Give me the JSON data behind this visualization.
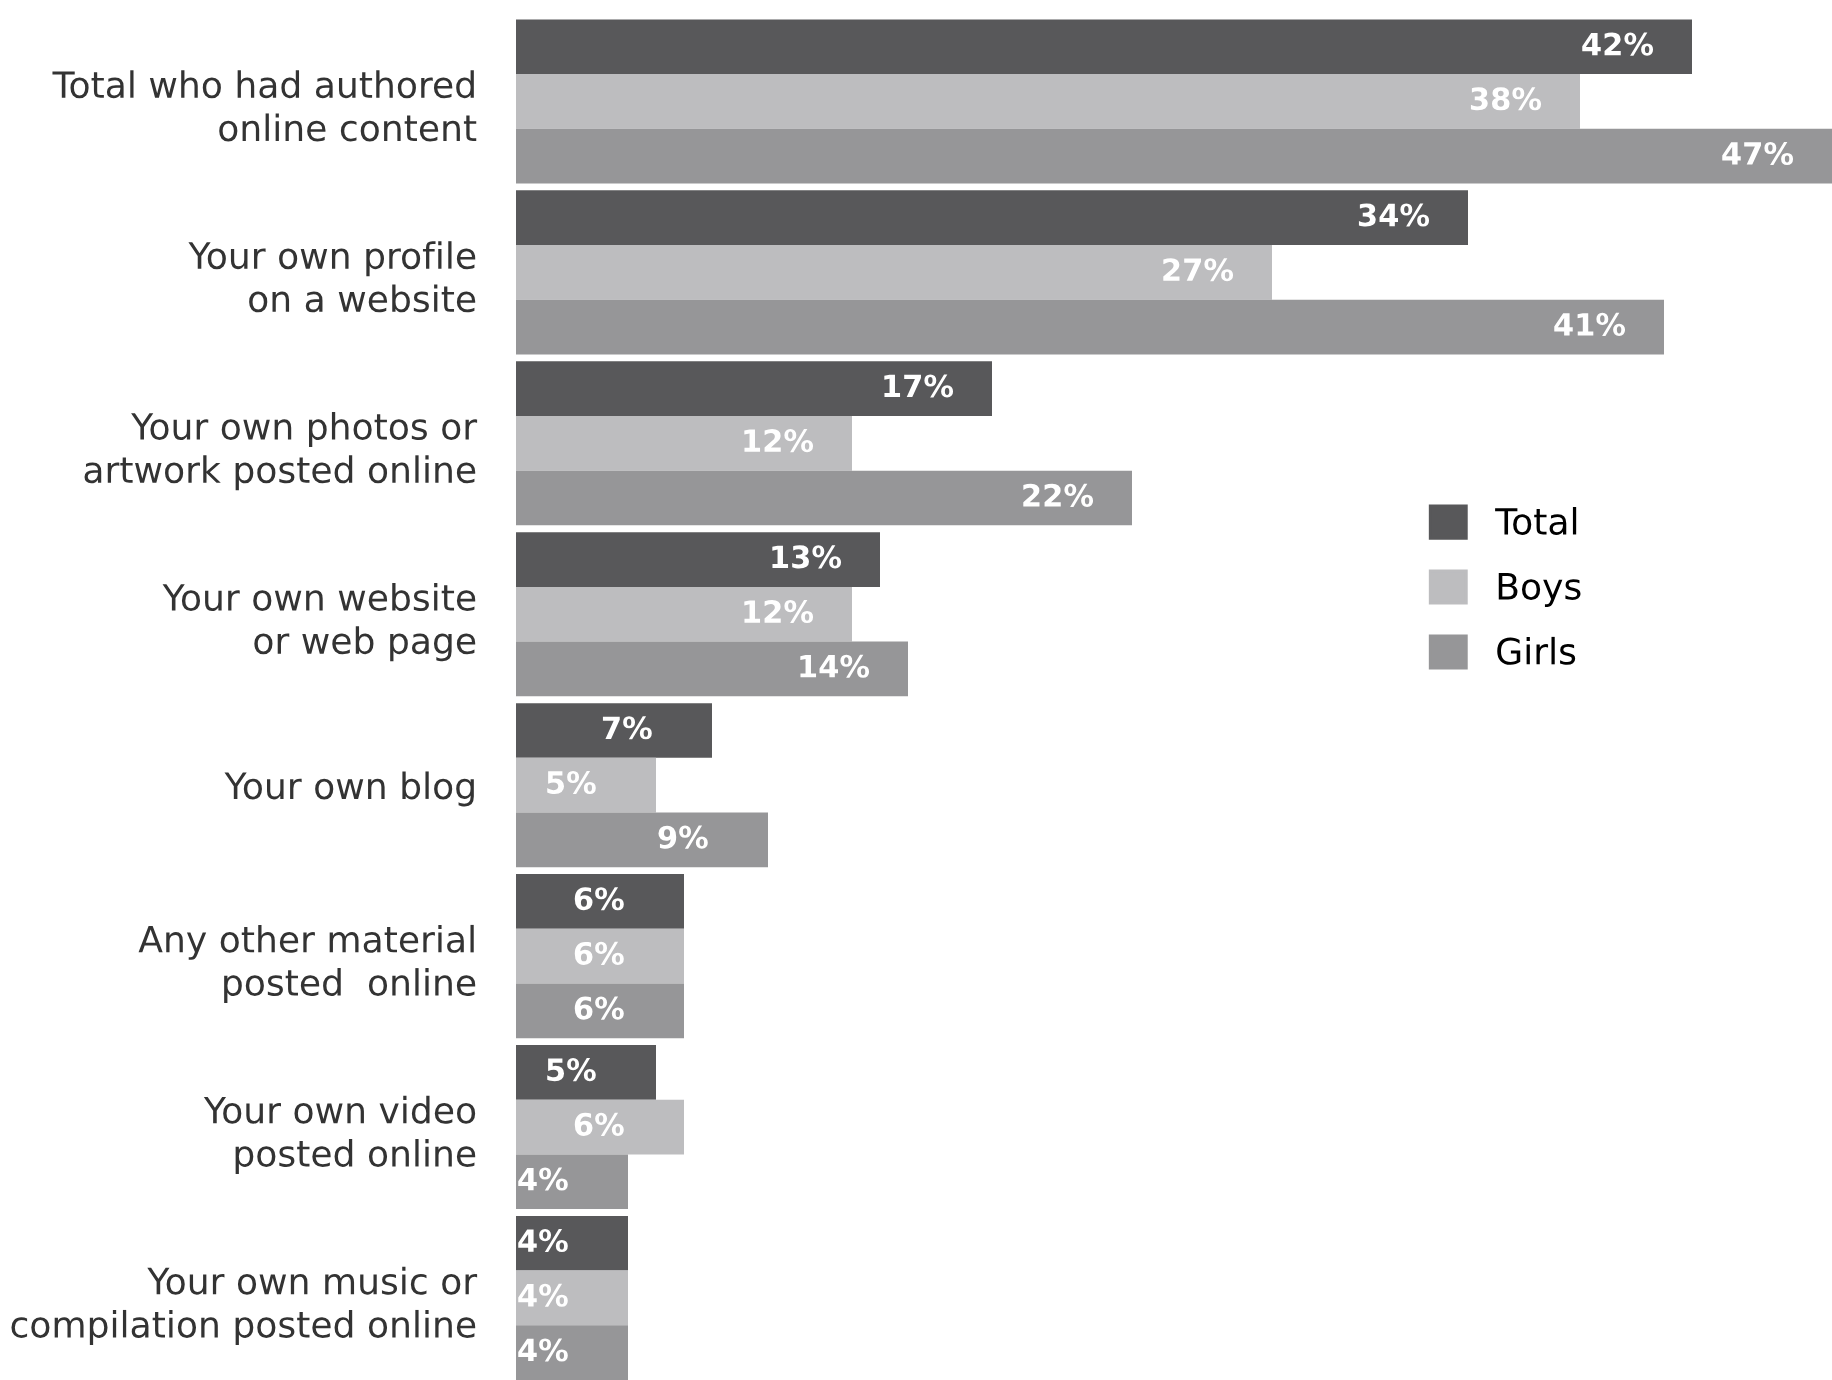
{
  "chart_data": {
    "type": "bar",
    "orientation": "horizontal",
    "categories": [
      "Total who had authored\nonline content",
      "Your own profile\non a website",
      "Your own photos or\nartwork posted online",
      "Your own website\nor web page",
      "Your own blog",
      "Any other material\nposted  online",
      "Your own video\nposted online",
      "Your own music or\ncompilation posted online"
    ],
    "series": [
      {
        "name": "Total",
        "color": "#58585a",
        "values": [
          42,
          34,
          17,
          13,
          7,
          6,
          5,
          4
        ],
        "value_labels": [
          "42%",
          "34%",
          "17%",
          "13%",
          "7%",
          "6%",
          "5%",
          "4%"
        ]
      },
      {
        "name": "Boys",
        "color": "#bdbdbf",
        "values": [
          38,
          27,
          12,
          12,
          5,
          6,
          6,
          4
        ],
        "value_labels": [
          "38%",
          "27%",
          "12%",
          "12%",
          "5%",
          "6%",
          "6%",
          "4%"
        ]
      },
      {
        "name": "Girls",
        "color": "#969698",
        "values": [
          47,
          41,
          22,
          14,
          9,
          6,
          4,
          4
        ],
        "value_labels": [
          "47%",
          "41%",
          "22%",
          "14%",
          "9%",
          "6%",
          "4%",
          "4%"
        ]
      }
    ],
    "legend": "right",
    "tick_labels": "y",
    "grid": false
  }
}
